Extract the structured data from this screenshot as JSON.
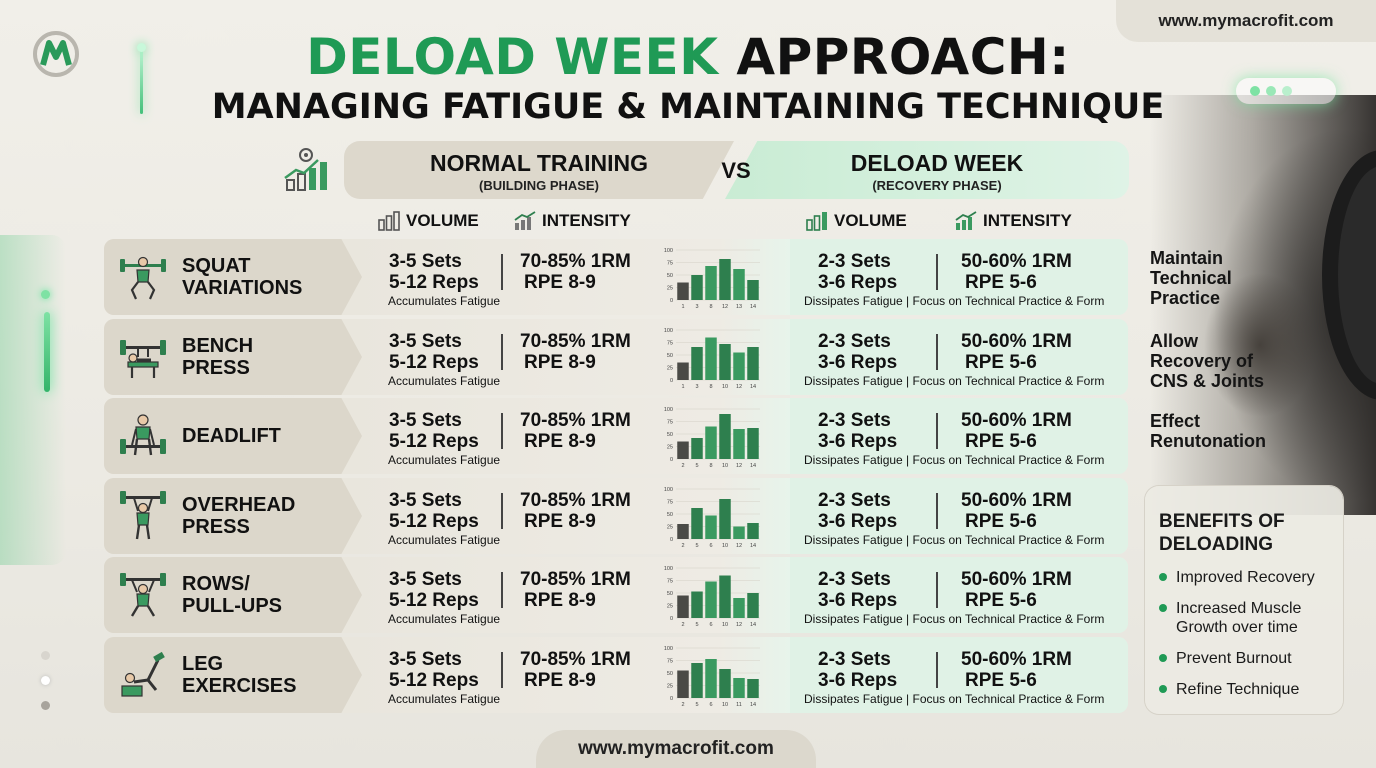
{
  "site_url": "www.mymacrofit.com",
  "title": {
    "line1_green": "DELOAD WEEK",
    "line1_rest": "APPROACH:",
    "line2": "MANAGING FATIGUE & MAINTAINING TECHNIQUE"
  },
  "phases": {
    "normal": {
      "title": "NORMAL TRAINING",
      "subtitle": "(BUILDING PHASE)"
    },
    "vs": "VS",
    "deload": {
      "title": "DELOAD WEEK",
      "subtitle": "(RECOVERY PHASE)"
    }
  },
  "columns": {
    "normal_volume": "VOLUME",
    "normal_intensity": "INTENSITY",
    "deload_volume": "VOLUME",
    "deload_intensity": "INTENSITY"
  },
  "normal": {
    "sets": "3-5 Sets",
    "reps": "5-12 Reps",
    "note": "Accumulates Fatigue",
    "intensity": "70-85% 1RM",
    "rpe": "RPE 8-9"
  },
  "deload": {
    "sets": "2-3 Sets",
    "reps": "3-6 Reps",
    "intensity": "50-60% 1RM",
    "rpe": "RPE 5-6",
    "note": "Dissipates Fatigue | Focus on Technical Practice & Form"
  },
  "exercises": [
    {
      "line1": "SQUAT",
      "line2": "VARIATIONS",
      "icon": "squat-icon",
      "chart": {
        "y_ticks": [
          "100",
          "75",
          "50",
          "25",
          "0"
        ],
        "x_labels": [
          "1",
          "3",
          "8",
          "12",
          "13",
          "14"
        ],
        "values": [
          35,
          50,
          68,
          82,
          62,
          40
        ]
      }
    },
    {
      "line1": "BENCH",
      "line2": "PRESS",
      "icon": "bench-press-icon",
      "chart": {
        "y_ticks": [
          "100",
          "75",
          "50",
          "25",
          "0"
        ],
        "x_labels": [
          "1",
          "3",
          "8",
          "10",
          "12",
          "14"
        ],
        "values": [
          35,
          66,
          85,
          72,
          55,
          66
        ]
      }
    },
    {
      "line1": "DEADLIFT",
      "line2": "",
      "icon": "deadlift-icon",
      "chart": {
        "y_ticks": [
          "100",
          "75",
          "50",
          "25",
          "0"
        ],
        "x_labels": [
          "2",
          "5",
          "8",
          "10",
          "12",
          "14"
        ],
        "values": [
          35,
          42,
          65,
          90,
          60,
          62
        ]
      }
    },
    {
      "line1": "OVERHEAD",
      "line2": "PRESS",
      "icon": "overhead-press-icon",
      "chart": {
        "y_ticks": [
          "100",
          "75",
          "50",
          "25",
          "0"
        ],
        "x_labels": [
          "2",
          "5",
          "6",
          "10",
          "12",
          "14"
        ],
        "values": [
          30,
          62,
          47,
          80,
          25,
          32
        ]
      }
    },
    {
      "line1": "ROWS/",
      "line2": "PULL-UPS",
      "icon": "rows-pullups-icon",
      "chart": {
        "y_ticks": [
          "100",
          "75",
          "50",
          "25",
          "0"
        ],
        "x_labels": [
          "2",
          "5",
          "6",
          "10",
          "12",
          "14"
        ],
        "values": [
          45,
          53,
          73,
          85,
          40,
          50
        ]
      }
    },
    {
      "line1": "LEG",
      "line2": "EXERCISES",
      "icon": "leg-exercise-icon",
      "chart": {
        "y_ticks": [
          "100",
          "75",
          "50",
          "25",
          "0"
        ],
        "x_labels": [
          "2",
          "5",
          "6",
          "10",
          "11",
          "14"
        ],
        "values": [
          55,
          70,
          78,
          58,
          40,
          38
        ]
      }
    }
  ],
  "side_notes": [
    {
      "lines": [
        "Maintain",
        "Technical",
        "Practice"
      ]
    },
    {
      "lines": [
        "Allow",
        "Recovery of",
        "CNS & Joints"
      ]
    },
    {
      "lines": [
        "Effect",
        "Renutonation"
      ]
    }
  ],
  "benefits": {
    "title_line1": "BENEFITS OF",
    "title_line2": "DELOADING",
    "items": [
      {
        "lines": [
          "Improved Recovery"
        ]
      },
      {
        "lines": [
          "Increased Muscle",
          "Growth over time"
        ]
      },
      {
        "lines": [
          "Prevent Burnout"
        ]
      },
      {
        "lines": [
          "Refine Technique"
        ]
      }
    ]
  },
  "colors": {
    "brand_green": "#1f9a55",
    "bar_green": "#2e7f4e",
    "bar_green_light": "#3a9a60",
    "deload_tint": "#e0f2e6"
  }
}
